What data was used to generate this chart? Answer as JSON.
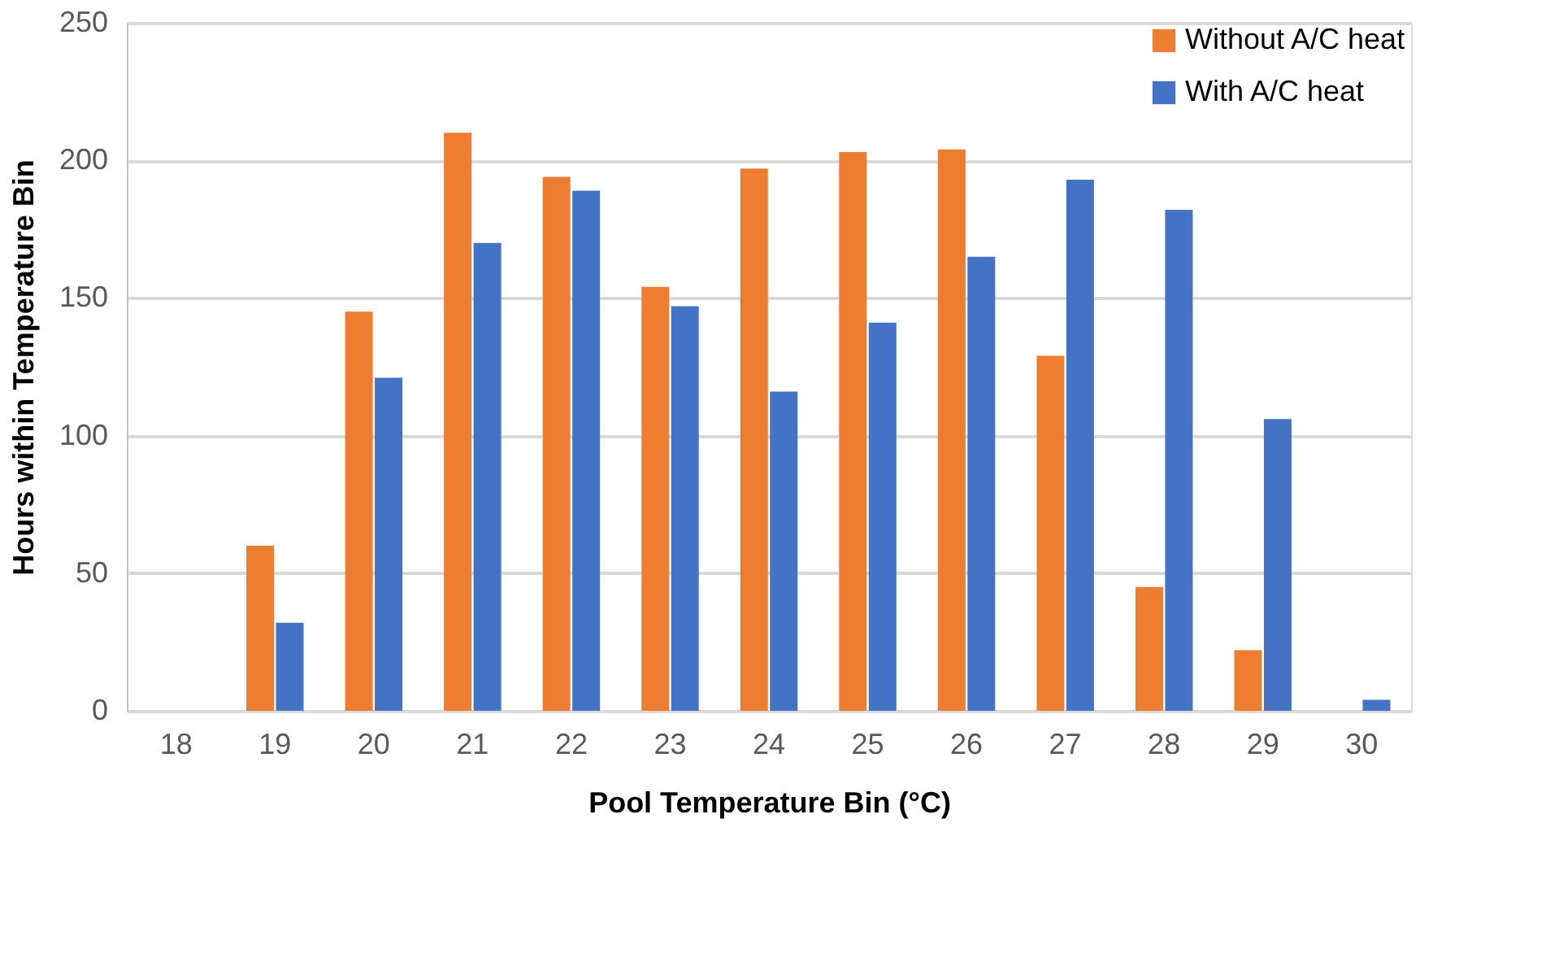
{
  "chart_data": {
    "type": "bar",
    "xlabel": "Pool Temperature Bin (°C)",
    "ylabel": "Hours within Temperature Bin",
    "categories": [
      "18",
      "19",
      "20",
      "21",
      "22",
      "23",
      "24",
      "25",
      "26",
      "27",
      "28",
      "29",
      "30"
    ],
    "series": [
      {
        "name": "Without A/C heat",
        "color": "#ed7d31",
        "values": [
          0,
          60,
          145,
          210,
          194,
          154,
          197,
          203,
          204,
          129,
          45,
          22,
          0
        ]
      },
      {
        "name": "With A/C heat",
        "color": "#4472c4",
        "values": [
          0,
          32,
          121,
          170,
          189,
          147,
          116,
          141,
          165,
          193,
          182,
          106,
          4
        ]
      }
    ],
    "ylim": [
      0,
      250
    ],
    "yticks": [
      0,
      50,
      100,
      150,
      200,
      250
    ],
    "grid": "y",
    "legend": "top right"
  }
}
